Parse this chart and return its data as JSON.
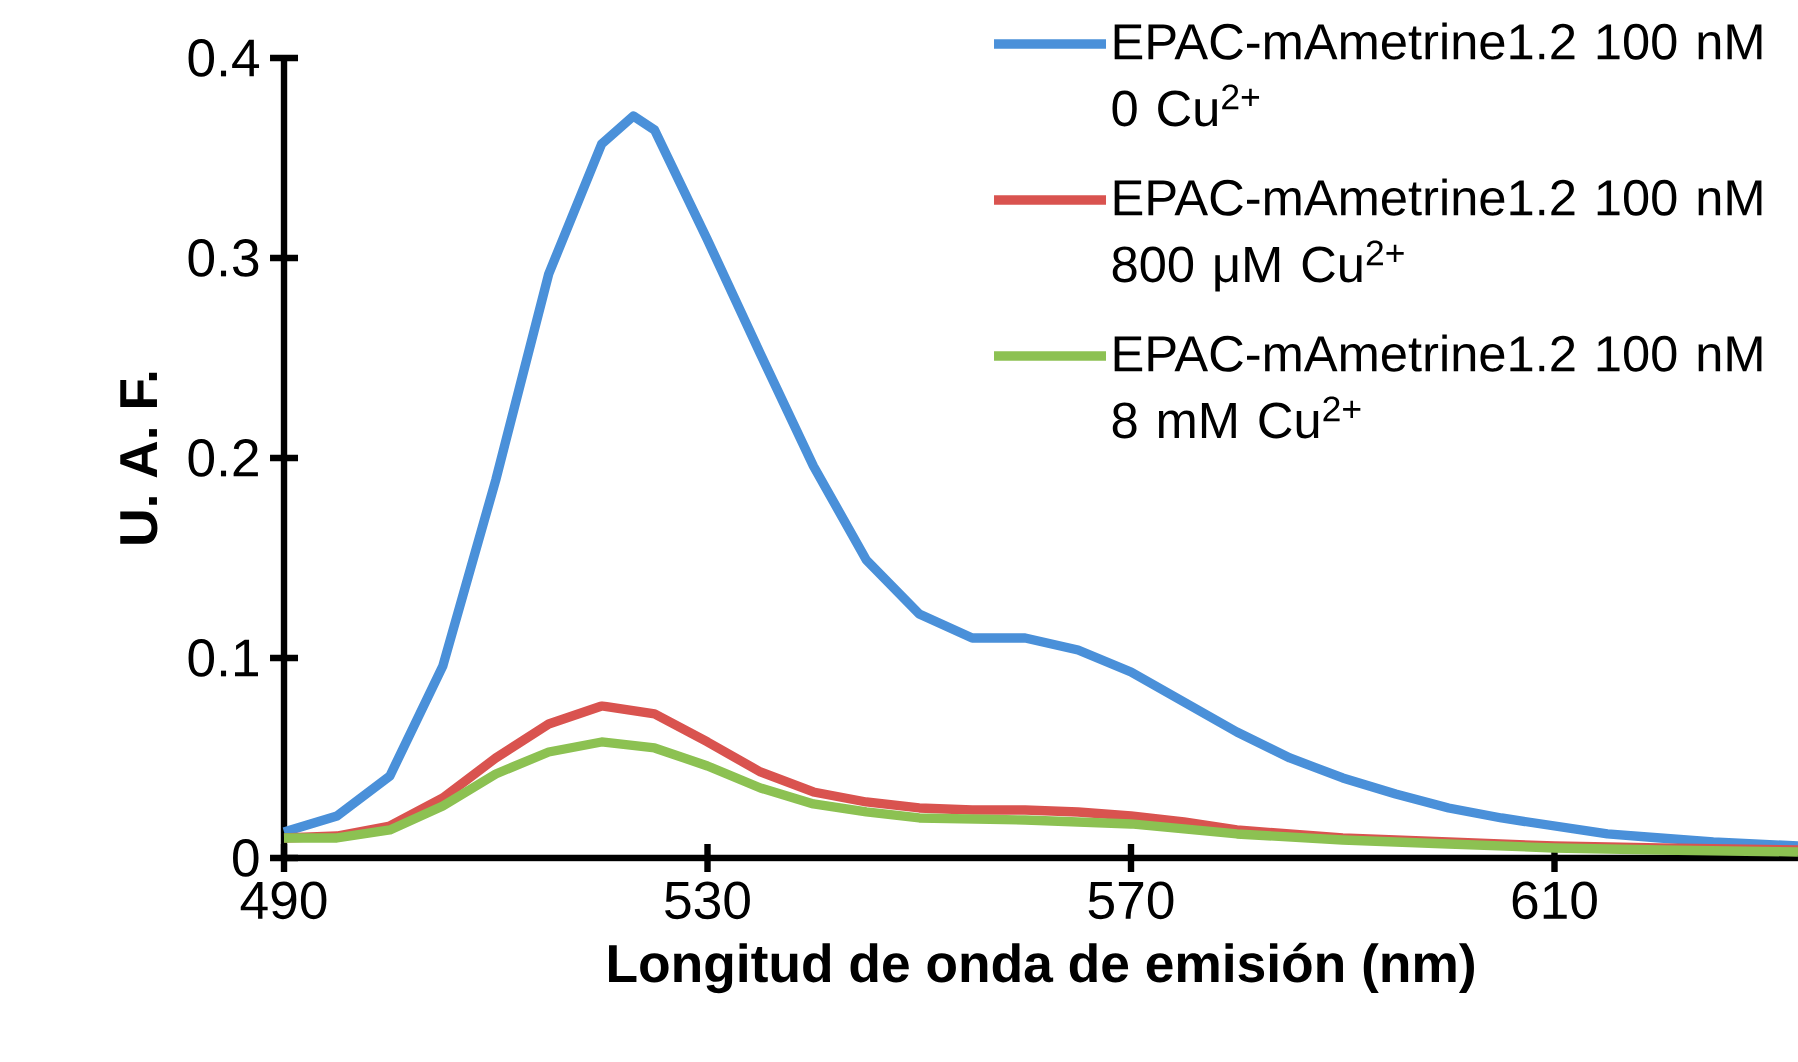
{
  "chart_data": {
    "type": "line",
    "xlabel": "Longitud de onda de emisión (nm)",
    "ylabel": "U. A. F.",
    "xlim": [
      490,
      633
    ],
    "xticks": [
      490,
      530,
      570,
      610
    ],
    "ylim": [
      0,
      0.4
    ],
    "yticks": [
      0,
      0.1,
      0.2,
      0.3,
      0.4
    ],
    "grid": false,
    "legend": "top right",
    "series": [
      {
        "name": "EPAC-mAmetrine1.2 100 nM 0 Cu$^{2+}$",
        "color": "#4a90d9",
        "x": [
          490,
          495,
          500,
          505,
          510,
          515,
          520,
          523,
          525,
          530,
          535,
          540,
          545,
          550,
          555,
          560,
          565,
          570,
          575,
          580,
          585,
          590,
          595,
          600,
          605,
          610,
          615,
          620,
          625,
          633
        ],
        "values": [
          0.013,
          0.021,
          0.041,
          0.096,
          0.189,
          0.292,
          0.357,
          0.371,
          0.364,
          0.309,
          0.252,
          0.196,
          0.149,
          0.122,
          0.11,
          0.11,
          0.104,
          0.093,
          0.078,
          0.063,
          0.05,
          0.04,
          0.032,
          0.025,
          0.02,
          0.016,
          0.012,
          0.01,
          0.008,
          0.006
        ]
      },
      {
        "name": "EPAC-mAmetrine1.2 100 nM 800 μM Cu$^{2+}$",
        "color": "#d9534f",
        "x": [
          490,
          495,
          500,
          505,
          510,
          515,
          520,
          525,
          530,
          535,
          540,
          545,
          550,
          555,
          560,
          565,
          570,
          575,
          580,
          590,
          600,
          610,
          620,
          633
        ],
        "values": [
          0.01,
          0.011,
          0.016,
          0.03,
          0.05,
          0.067,
          0.076,
          0.072,
          0.058,
          0.043,
          0.033,
          0.028,
          0.025,
          0.024,
          0.024,
          0.023,
          0.021,
          0.018,
          0.014,
          0.01,
          0.008,
          0.006,
          0.005,
          0.004
        ]
      },
      {
        "name": "EPAC-mAmetrine1.2 100 nM 8 mM Cu$^{2+}$",
        "color": "#8cc152",
        "x": [
          490,
          495,
          500,
          505,
          510,
          515,
          520,
          525,
          530,
          535,
          540,
          545,
          550,
          560,
          570,
          580,
          590,
          600,
          610,
          620,
          633
        ],
        "values": [
          0.01,
          0.01,
          0.014,
          0.026,
          0.042,
          0.053,
          0.058,
          0.055,
          0.046,
          0.035,
          0.027,
          0.023,
          0.02,
          0.019,
          0.017,
          0.012,
          0.009,
          0.007,
          0.005,
          0.004,
          0.003
        ]
      }
    ]
  }
}
